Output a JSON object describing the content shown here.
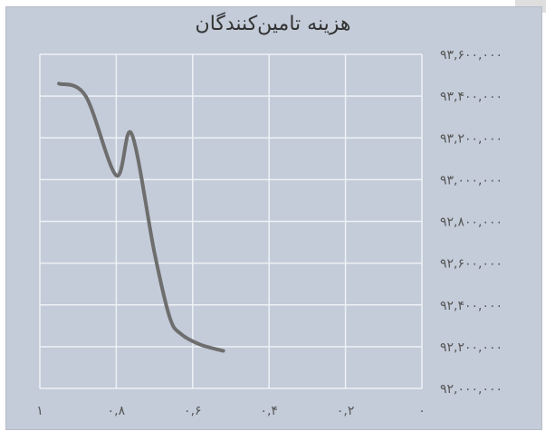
{
  "colors": {
    "panel_bg": "#c4ccd9",
    "grid": "#eef1f5",
    "line": "#6e6e6e",
    "text": "#333333",
    "tick_text": "#555555"
  },
  "chart_data": {
    "type": "line",
    "title": "هزینه تامین‌کنندگان",
    "xlabel": "",
    "ylabel": "",
    "x_reversed": true,
    "xlim": [
      0,
      1
    ],
    "ylim": [
      92000000,
      93600000
    ],
    "grid": true,
    "legend": "none",
    "x_ticks": [
      1,
      0.8,
      0.6,
      0.4,
      0.2,
      0
    ],
    "x_tick_labels": [
      "۱",
      "۰,۸",
      "۰,۶",
      "۰,۴",
      "۰,۲",
      "۰"
    ],
    "y_ticks": [
      93600000,
      93400000,
      93200000,
      93000000,
      92800000,
      92600000,
      92400000,
      92200000,
      92000000
    ],
    "y_tick_labels": [
      "۹۳,۶۰۰,۰۰۰",
      "۹۳,۴۰۰,۰۰۰",
      "۹۳,۲۰۰,۰۰۰",
      "۹۳,۰۰۰,۰۰۰",
      "۹۲,۸۰۰,۰۰۰",
      "۹۲,۶۰۰,۰۰۰",
      "۹۲,۴۰۰,۰۰۰",
      "۹۲,۲۰۰,۰۰۰",
      "۹۲,۰۰۰,۰۰۰"
    ],
    "series": [
      {
        "x": [
          0.95,
          0.88,
          0.8,
          0.76,
          0.7,
          0.66,
          0.63,
          0.58,
          0.52
        ],
        "values": [
          93460000,
          93400000,
          93020000,
          93220000,
          92650000,
          92340000,
          92260000,
          92210000,
          92180000
        ]
      }
    ]
  }
}
